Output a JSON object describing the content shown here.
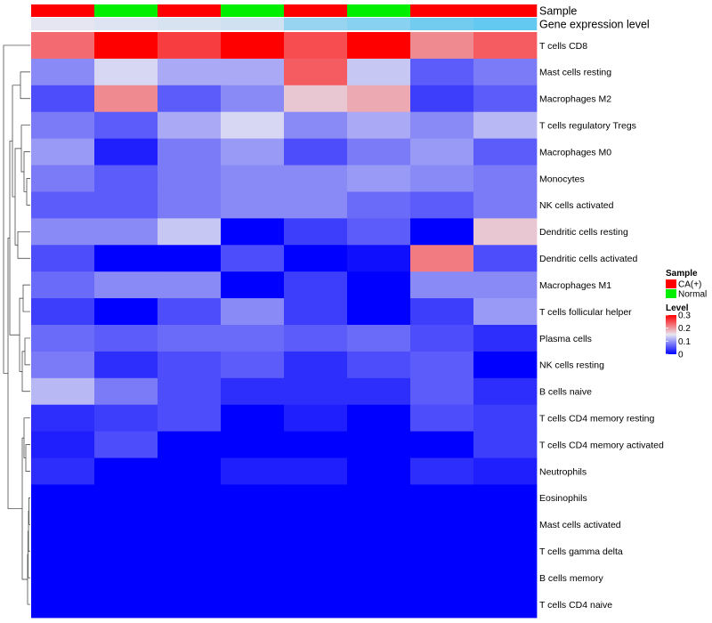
{
  "chart_data": {
    "type": "heatmap",
    "title": "",
    "columns": [
      "CA(+)",
      "Normal",
      "CA(+)",
      "Normal",
      "CA(+)",
      "Normal",
      "CA(+)",
      "CA(+)"
    ],
    "annotation_tracks": [
      {
        "name": "Sample",
        "values": [
          "CA(+)",
          "Normal",
          "CA(+)",
          "Normal",
          "CA(+)",
          "Normal",
          "CA(+)",
          "CA(+)"
        ]
      },
      {
        "name": "Gene expression level",
        "values": [
          0.0,
          0.05,
          0.1,
          0.15,
          0.55,
          0.65,
          0.8,
          0.9
        ]
      }
    ],
    "rows": [
      "T cells CD8",
      "Mast cells resting",
      "Macrophages M2",
      "T cells regulatory  Tregs",
      "Macrophages M0",
      "Monocytes",
      "NK cells activated",
      "Dendritic cells resting",
      "Dendritic cells activated",
      "Macrophages M1",
      "T cells follicular helper",
      "Plasma cells",
      "NK cells resting",
      "B cells naive",
      "T cells CD4 memory resting",
      "T cells CD4 memory activated",
      "Neutrophils",
      "Eosinophils",
      "Mast cells activated",
      "T cells gamma delta",
      "B cells memory",
      "T cells CD4 naive"
    ],
    "values": [
      [
        0.23,
        0.3,
        0.26,
        0.3,
        0.25,
        0.3,
        0.21,
        0.24
      ],
      [
        0.09,
        0.14,
        0.11,
        0.11,
        0.24,
        0.13,
        0.06,
        0.08
      ],
      [
        0.05,
        0.21,
        0.06,
        0.09,
        0.17,
        0.19,
        0.04,
        0.06
      ],
      [
        0.08,
        0.06,
        0.11,
        0.14,
        0.09,
        0.11,
        0.09,
        0.12
      ],
      [
        0.1,
        0.02,
        0.08,
        0.1,
        0.05,
        0.08,
        0.1,
        0.06
      ],
      [
        0.08,
        0.06,
        0.08,
        0.09,
        0.09,
        0.1,
        0.09,
        0.08
      ],
      [
        0.06,
        0.06,
        0.08,
        0.09,
        0.09,
        0.07,
        0.06,
        0.08
      ],
      [
        0.09,
        0.09,
        0.13,
        0.0,
        0.04,
        0.06,
        0.0,
        0.17
      ],
      [
        0.05,
        0.0,
        0.0,
        0.05,
        0.0,
        0.01,
        0.22,
        0.05
      ],
      [
        0.07,
        0.09,
        0.09,
        0.0,
        0.04,
        0.0,
        0.09,
        0.09
      ],
      [
        0.04,
        0.0,
        0.05,
        0.09,
        0.04,
        0.0,
        0.04,
        0.1
      ],
      [
        0.07,
        0.06,
        0.07,
        0.07,
        0.06,
        0.07,
        0.05,
        0.03
      ],
      [
        0.08,
        0.03,
        0.05,
        0.06,
        0.03,
        0.05,
        0.06,
        0.0
      ],
      [
        0.12,
        0.08,
        0.05,
        0.03,
        0.03,
        0.03,
        0.06,
        0.03
      ],
      [
        0.03,
        0.04,
        0.05,
        0.0,
        0.02,
        0.0,
        0.05,
        0.04
      ],
      [
        0.02,
        0.05,
        0.0,
        0.0,
        0.0,
        0.0,
        0.0,
        0.04
      ],
      [
        0.03,
        0.0,
        0.0,
        0.02,
        0.02,
        0.0,
        0.03,
        0.02
      ],
      [
        0.0,
        0.0,
        0.0,
        0.0,
        0.0,
        0.0,
        0.0,
        0.0
      ],
      [
        0.0,
        0.0,
        0.0,
        0.0,
        0.0,
        0.0,
        0.0,
        0.0
      ],
      [
        0.0,
        0.0,
        0.0,
        0.0,
        0.0,
        0.0,
        0.0,
        0.0
      ],
      [
        0.0,
        0.0,
        0.0,
        0.0,
        0.0,
        0.0,
        0.0,
        0.0
      ],
      [
        0.0,
        0.0,
        0.0,
        0.0,
        0.0,
        0.0,
        0.0,
        0.0
      ]
    ],
    "color_scale": {
      "min": 0,
      "max": 0.3,
      "colors": [
        "#0000ff",
        "#e6e6f2",
        "#ff0000"
      ],
      "ticks": [
        0,
        0.1,
        0.2,
        0.3
      ],
      "tick_labels": [
        "0",
        "0.1",
        "0.2",
        "0.3"
      ]
    },
    "legend": {
      "sample_title": "Sample",
      "sample_entries": [
        {
          "label": "CA(+)",
          "color": "#ff0000"
        },
        {
          "label": "Normal",
          "color": "#00ee00"
        }
      ],
      "level_title": "Level"
    },
    "sample_colors": {
      "CA(+)": "#ff0000",
      "Normal": "#00ee00"
    },
    "expression_colors": [
      "#e6e6f2",
      "#55c6f0"
    ],
    "row_dendrogram": true
  }
}
